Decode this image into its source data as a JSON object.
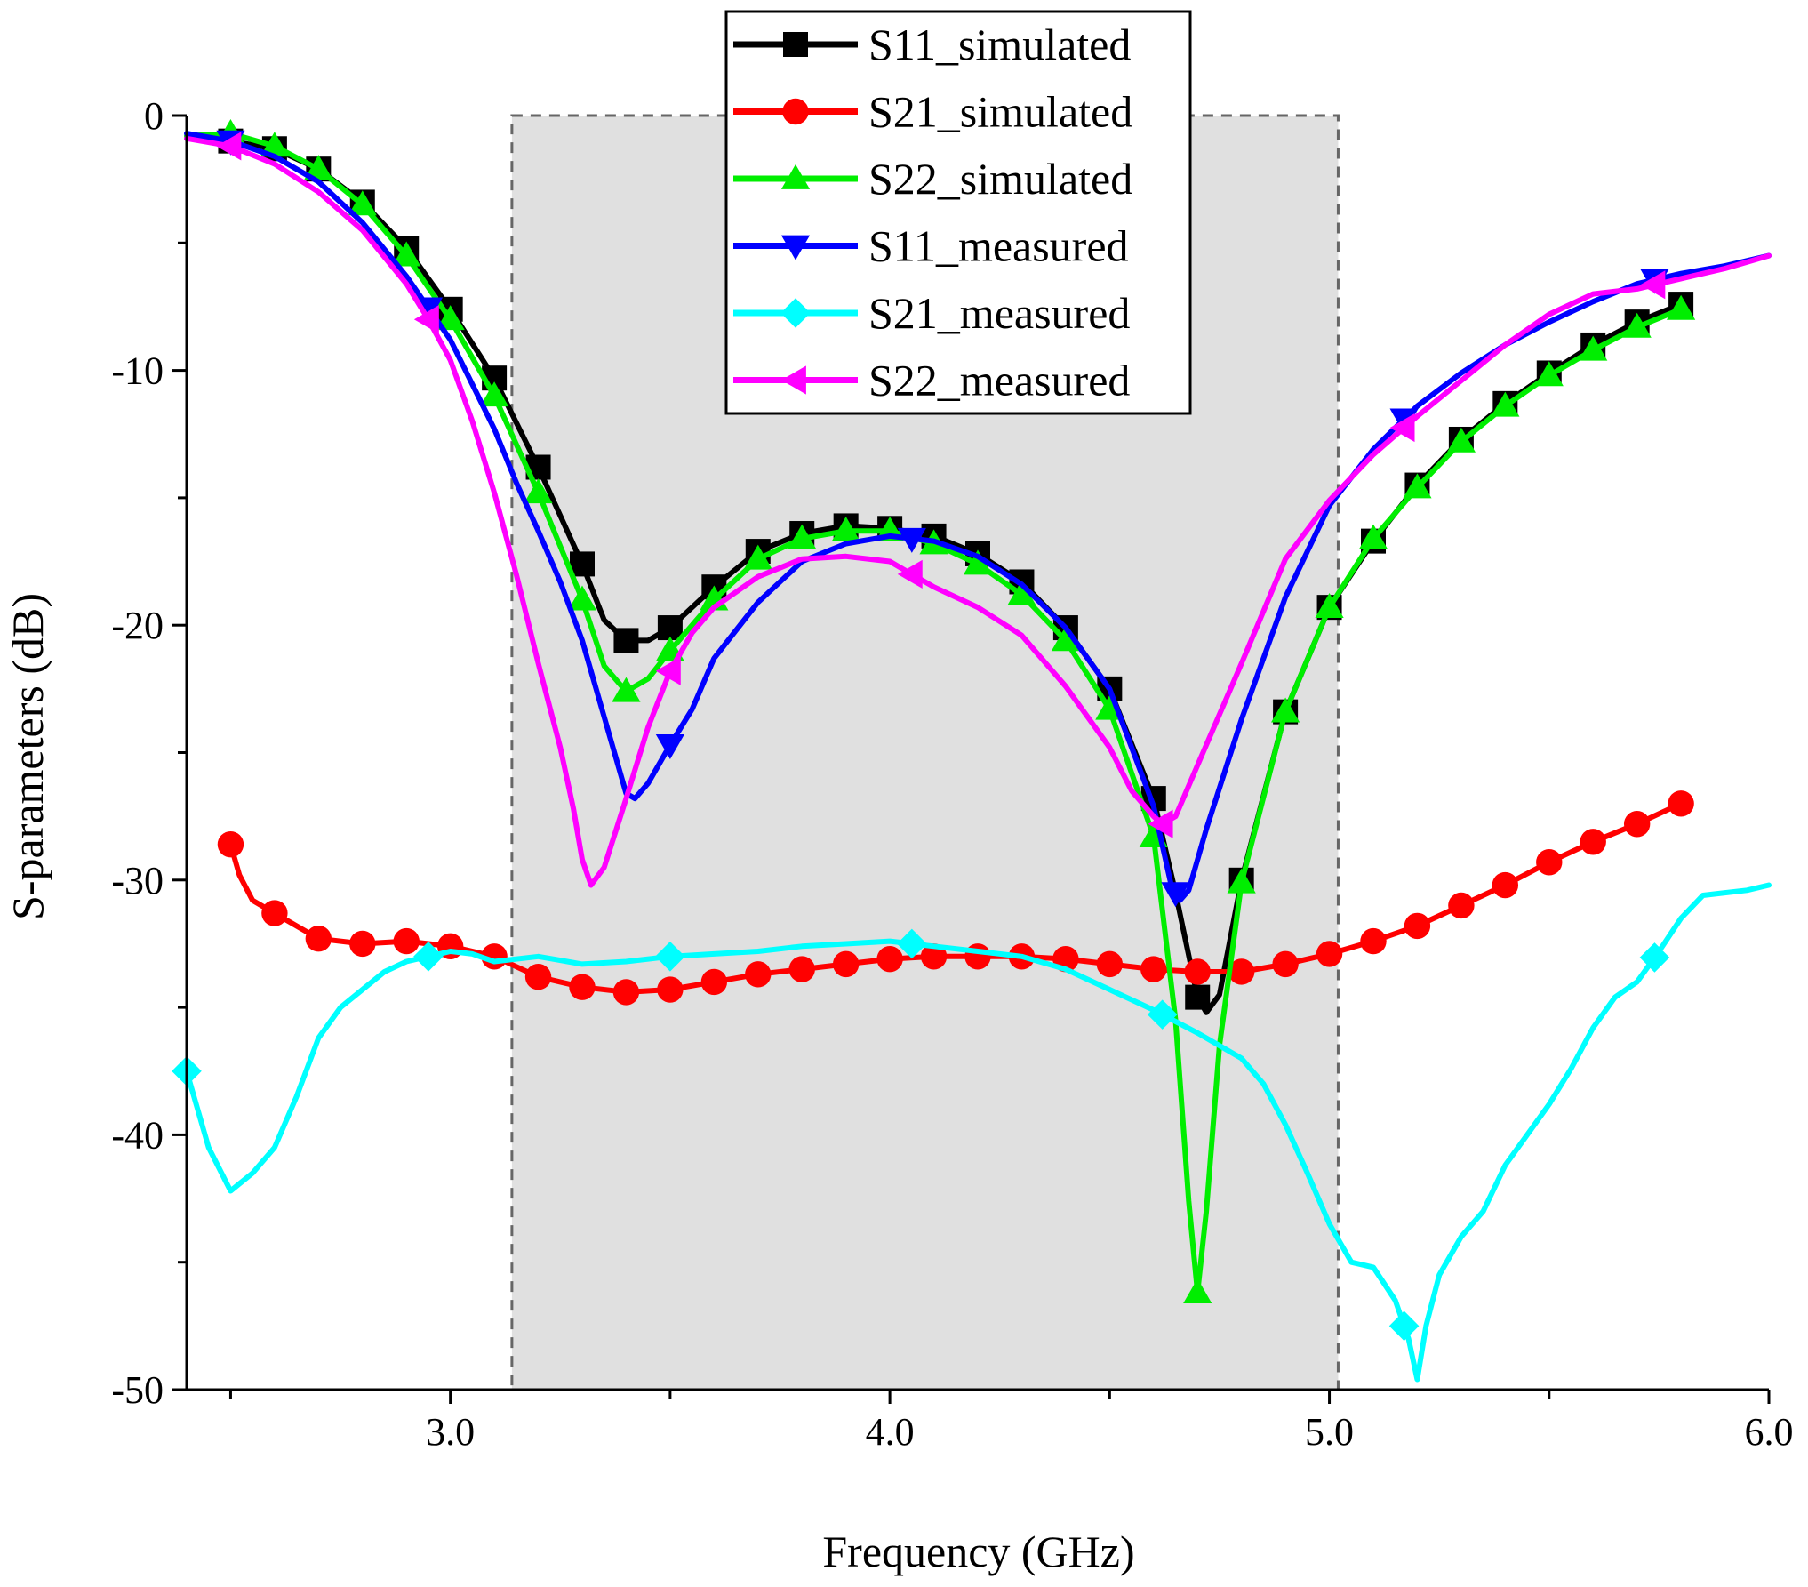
{
  "chart_data": {
    "type": "line",
    "title": "",
    "xlabel": "Frequency (GHz)",
    "ylabel": "S-parameters (dB)",
    "xlim": [
      2.4,
      6.0
    ],
    "ylim": [
      -50,
      0
    ],
    "x_ticks": [
      "3.0",
      "4.0",
      "5.0",
      "6.0"
    ],
    "y_ticks": [
      "0",
      "-10",
      "-20",
      "-30",
      "-40",
      "-50"
    ],
    "grid": false,
    "legend_position": "top-center",
    "shaded_band": {
      "x_start": 3.14,
      "x_end": 5.02,
      "color": "#e0e0e0"
    },
    "series": [
      {
        "name": "S11_simulated",
        "color": "#000000",
        "marker": "square",
        "x": [
          2.4,
          2.5,
          2.6,
          2.7,
          2.8,
          2.9,
          3.0,
          3.1,
          3.2,
          3.3,
          3.35,
          3.4,
          3.45,
          3.5,
          3.6,
          3.7,
          3.8,
          3.9,
          4.0,
          4.1,
          4.2,
          4.3,
          4.4,
          4.5,
          4.6,
          4.65,
          4.7,
          4.72,
          4.75,
          4.8,
          4.9,
          5.0,
          5.1,
          5.2,
          5.3,
          5.4,
          5.5,
          5.6,
          5.7,
          5.8
        ],
        "y": [
          -0.9,
          -1.0,
          -1.3,
          -2.1,
          -3.4,
          -5.2,
          -7.6,
          -10.3,
          -13.8,
          -17.6,
          -19.8,
          -20.6,
          -20.6,
          -20.1,
          -18.5,
          -17.1,
          -16.4,
          -16.1,
          -16.2,
          -16.5,
          -17.2,
          -18.3,
          -20.1,
          -22.5,
          -26.8,
          -30.5,
          -34.6,
          -35.2,
          -34.5,
          -30.0,
          -23.4,
          -19.3,
          -16.7,
          -14.5,
          -12.7,
          -11.3,
          -10.1,
          -9.0,
          -8.1,
          -7.4
        ],
        "marker_x": [
          2.5,
          2.6,
          2.7,
          2.8,
          2.9,
          3.0,
          3.1,
          3.2,
          3.3,
          3.4,
          3.5,
          3.6,
          3.7,
          3.8,
          3.9,
          4.0,
          4.1,
          4.2,
          4.3,
          4.4,
          4.5,
          4.6,
          4.7,
          4.8,
          4.9,
          5.0,
          5.1,
          5.2,
          5.3,
          5.4,
          5.5,
          5.6,
          5.7,
          5.8
        ]
      },
      {
        "name": "S21_simulated",
        "color": "#ff0000",
        "marker": "circle",
        "x": [
          2.5,
          2.52,
          2.55,
          2.6,
          2.7,
          2.8,
          2.9,
          3.0,
          3.1,
          3.2,
          3.3,
          3.4,
          3.5,
          3.6,
          3.7,
          3.8,
          3.9,
          4.0,
          4.1,
          4.2,
          4.3,
          4.4,
          4.5,
          4.6,
          4.7,
          4.8,
          4.9,
          5.0,
          5.1,
          5.2,
          5.3,
          5.4,
          5.5,
          5.6,
          5.7,
          5.8
        ],
        "y": [
          -28.6,
          -29.8,
          -30.8,
          -31.3,
          -32.3,
          -32.5,
          -32.4,
          -32.6,
          -33.0,
          -33.8,
          -34.2,
          -34.4,
          -34.3,
          -34.0,
          -33.7,
          -33.5,
          -33.3,
          -33.1,
          -33.0,
          -33.0,
          -33.0,
          -33.1,
          -33.3,
          -33.5,
          -33.6,
          -33.6,
          -33.3,
          -32.9,
          -32.4,
          -31.8,
          -31.0,
          -30.2,
          -29.3,
          -28.5,
          -27.8,
          -27.0
        ],
        "marker_x": [
          2.5,
          2.6,
          2.7,
          2.8,
          2.9,
          3.0,
          3.1,
          3.2,
          3.3,
          3.4,
          3.5,
          3.6,
          3.7,
          3.8,
          3.9,
          4.0,
          4.1,
          4.2,
          4.3,
          4.4,
          4.5,
          4.6,
          4.7,
          4.8,
          4.9,
          5.0,
          5.1,
          5.2,
          5.3,
          5.4,
          5.5,
          5.6,
          5.7,
          5.8
        ]
      },
      {
        "name": "S22_simulated",
        "color": "#00ee00",
        "marker": "triangle-up",
        "x": [
          2.4,
          2.5,
          2.6,
          2.7,
          2.8,
          2.9,
          3.0,
          3.1,
          3.2,
          3.3,
          3.35,
          3.4,
          3.45,
          3.5,
          3.6,
          3.7,
          3.8,
          3.9,
          4.0,
          4.1,
          4.2,
          4.3,
          4.4,
          4.5,
          4.6,
          4.65,
          4.68,
          4.7,
          4.72,
          4.75,
          4.8,
          4.9,
          5.0,
          5.1,
          5.2,
          5.3,
          5.4,
          5.5,
          5.6,
          5.7,
          5.8
        ],
        "y": [
          -0.8,
          -0.7,
          -1.2,
          -2.1,
          -3.5,
          -5.5,
          -8.0,
          -11.0,
          -14.8,
          -19.0,
          -21.6,
          -22.6,
          -22.1,
          -21.0,
          -19.0,
          -17.4,
          -16.6,
          -16.3,
          -16.3,
          -16.8,
          -17.6,
          -18.8,
          -20.6,
          -23.3,
          -28.3,
          -35.5,
          -42.6,
          -46.2,
          -43.0,
          -36.5,
          -30.1,
          -23.4,
          -19.3,
          -16.6,
          -14.6,
          -12.8,
          -11.4,
          -10.2,
          -9.2,
          -8.3,
          -7.6
        ],
        "marker_x": [
          2.5,
          2.6,
          2.7,
          2.8,
          2.9,
          3.0,
          3.1,
          3.2,
          3.3,
          3.4,
          3.5,
          3.6,
          3.7,
          3.8,
          3.9,
          4.0,
          4.1,
          4.2,
          4.3,
          4.4,
          4.5,
          4.6,
          4.7,
          4.8,
          4.9,
          5.0,
          5.1,
          5.2,
          5.3,
          5.4,
          5.5,
          5.6,
          5.7,
          5.8
        ]
      },
      {
        "name": "S11_measured",
        "color": "#0000ff",
        "marker": "triangle-down",
        "x": [
          2.4,
          2.5,
          2.6,
          2.7,
          2.8,
          2.9,
          3.0,
          3.1,
          3.15,
          3.2,
          3.25,
          3.3,
          3.35,
          3.4,
          3.42,
          3.45,
          3.5,
          3.55,
          3.6,
          3.7,
          3.8,
          3.9,
          4.0,
          4.1,
          4.2,
          4.3,
          4.4,
          4.5,
          4.55,
          4.6,
          4.64,
          4.66,
          4.68,
          4.72,
          4.8,
          4.9,
          5.0,
          5.1,
          5.2,
          5.3,
          5.4,
          5.5,
          5.6,
          5.7,
          5.8,
          5.9,
          6.0
        ],
        "y": [
          -0.7,
          -1.0,
          -1.6,
          -2.6,
          -4.2,
          -6.3,
          -8.8,
          -12.3,
          -14.4,
          -16.3,
          -18.3,
          -20.6,
          -23.6,
          -26.6,
          -26.8,
          -26.2,
          -24.7,
          -23.3,
          -21.3,
          -19.1,
          -17.5,
          -16.8,
          -16.5,
          -16.7,
          -17.3,
          -18.4,
          -20.1,
          -22.5,
          -24.8,
          -27.1,
          -30.2,
          -30.8,
          -30.4,
          -28.0,
          -23.7,
          -18.9,
          -15.3,
          -13.1,
          -11.4,
          -10.1,
          -9.0,
          -8.1,
          -7.3,
          -6.6,
          -6.2,
          -5.9,
          -5.5
        ],
        "marker_x": [
          2.5,
          2.95,
          3.5,
          4.05,
          4.65,
          5.17,
          5.74
        ]
      },
      {
        "name": "S21_measured",
        "color": "#00ffff",
        "marker": "diamond",
        "x": [
          2.4,
          2.45,
          2.5,
          2.55,
          2.6,
          2.65,
          2.7,
          2.75,
          2.8,
          2.85,
          2.9,
          2.95,
          3.0,
          3.05,
          3.1,
          3.2,
          3.3,
          3.4,
          3.5,
          3.6,
          3.7,
          3.8,
          3.9,
          4.0,
          4.1,
          4.2,
          4.3,
          4.4,
          4.5,
          4.6,
          4.7,
          4.8,
          4.85,
          4.9,
          4.95,
          5.0,
          5.05,
          5.1,
          5.15,
          5.18,
          5.2,
          5.22,
          5.25,
          5.3,
          5.35,
          5.4,
          5.45,
          5.5,
          5.55,
          5.6,
          5.65,
          5.7,
          5.75,
          5.8,
          5.85,
          5.9,
          5.95,
          6.0
        ],
        "y": [
          -37.5,
          -40.5,
          -42.2,
          -41.5,
          -40.5,
          -38.5,
          -36.2,
          -35.0,
          -34.3,
          -33.6,
          -33.2,
          -33.0,
          -32.8,
          -32.9,
          -33.2,
          -33.0,
          -33.3,
          -33.2,
          -33.0,
          -32.9,
          -32.8,
          -32.6,
          -32.5,
          -32.4,
          -32.6,
          -32.8,
          -33.0,
          -33.5,
          -34.3,
          -35.1,
          -36.0,
          -37.0,
          -38.0,
          -39.6,
          -41.5,
          -43.5,
          -45.0,
          -45.2,
          -46.5,
          -48.0,
          -49.6,
          -47.5,
          -45.5,
          -44.0,
          -43.0,
          -41.2,
          -40.0,
          -38.8,
          -37.4,
          -35.8,
          -34.6,
          -34.0,
          -32.8,
          -31.5,
          -30.6,
          -30.5,
          -30.4,
          -30.2
        ],
        "marker_x": [
          2.4,
          2.95,
          3.5,
          4.05,
          4.62,
          5.17,
          5.74
        ]
      },
      {
        "name": "S22_measured",
        "color": "#ff00ff",
        "marker": "triangle-left",
        "x": [
          2.4,
          2.5,
          2.6,
          2.7,
          2.8,
          2.9,
          2.95,
          3.0,
          3.05,
          3.1,
          3.15,
          3.2,
          3.25,
          3.28,
          3.3,
          3.32,
          3.35,
          3.4,
          3.45,
          3.5,
          3.55,
          3.6,
          3.7,
          3.8,
          3.9,
          4.0,
          4.05,
          4.1,
          4.2,
          4.3,
          4.4,
          4.5,
          4.55,
          4.6,
          4.62,
          4.65,
          4.7,
          4.8,
          4.9,
          5.0,
          5.1,
          5.2,
          5.3,
          5.4,
          5.5,
          5.6,
          5.7,
          5.8,
          5.9,
          6.0
        ],
        "y": [
          -0.9,
          -1.2,
          -1.9,
          -3.0,
          -4.5,
          -6.6,
          -8.0,
          -9.6,
          -12.0,
          -14.8,
          -18.0,
          -21.5,
          -24.8,
          -27.2,
          -29.2,
          -30.2,
          -29.5,
          -26.8,
          -24.0,
          -21.8,
          -20.3,
          -19.3,
          -18.1,
          -17.4,
          -17.3,
          -17.5,
          -18.0,
          -18.5,
          -19.3,
          -20.4,
          -22.4,
          -24.8,
          -26.5,
          -27.5,
          -27.8,
          -27.5,
          -25.5,
          -21.5,
          -17.4,
          -15.1,
          -13.3,
          -11.8,
          -10.4,
          -9.0,
          -7.8,
          -7.0,
          -6.8,
          -6.4,
          -6.0,
          -5.5
        ],
        "marker_x": [
          2.5,
          2.95,
          3.5,
          4.05,
          4.62,
          5.17,
          5.74
        ]
      }
    ]
  }
}
